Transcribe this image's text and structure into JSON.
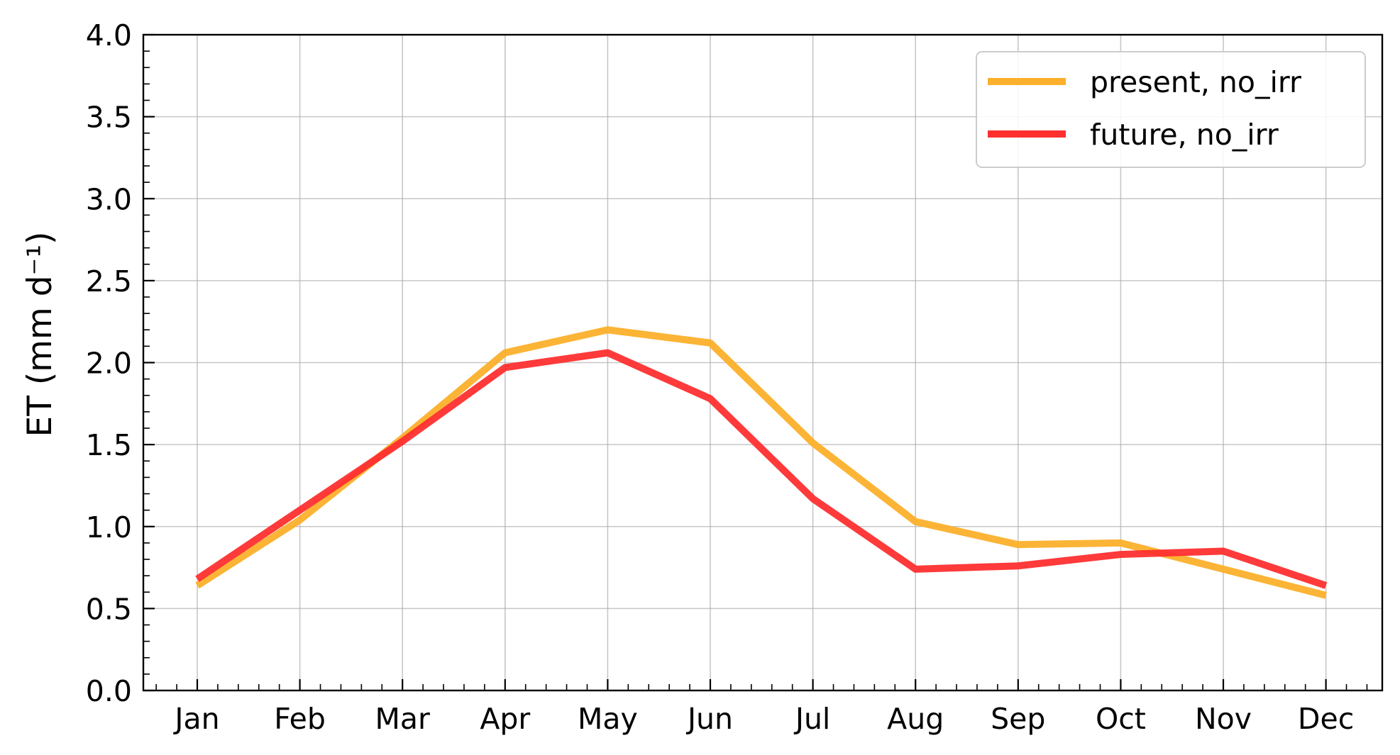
{
  "chart_data": {
    "type": "line",
    "title": "",
    "xlabel": "",
    "ylabel": "ET (mm d⁻¹)",
    "categories": [
      "Jan",
      "Feb",
      "Mar",
      "Apr",
      "May",
      "Jun",
      "Jul",
      "Aug",
      "Sep",
      "Oct",
      "Nov",
      "Dec"
    ],
    "ylim": [
      0.0,
      4.0
    ],
    "yticks": [
      "0.0",
      "0.5",
      "1.0",
      "1.5",
      "2.0",
      "2.5",
      "3.0",
      "3.5",
      "4.0"
    ],
    "ytick_values": [
      0.0,
      0.5,
      1.0,
      1.5,
      2.0,
      2.5,
      3.0,
      3.5,
      4.0
    ],
    "grid": true,
    "legend_position": "top-right",
    "series": [
      {
        "name": "present, no_irr",
        "color": "#fcb02b",
        "values": [
          0.64,
          1.04,
          1.54,
          2.06,
          2.2,
          2.12,
          1.51,
          1.03,
          0.89,
          0.9,
          0.74,
          0.58
        ]
      },
      {
        "name": "future, no_irr",
        "color": "#fe2f2f",
        "values": [
          0.68,
          1.1,
          1.52,
          1.97,
          2.06,
          1.78,
          1.17,
          0.74,
          0.76,
          0.83,
          0.85,
          0.64
        ]
      }
    ]
  }
}
